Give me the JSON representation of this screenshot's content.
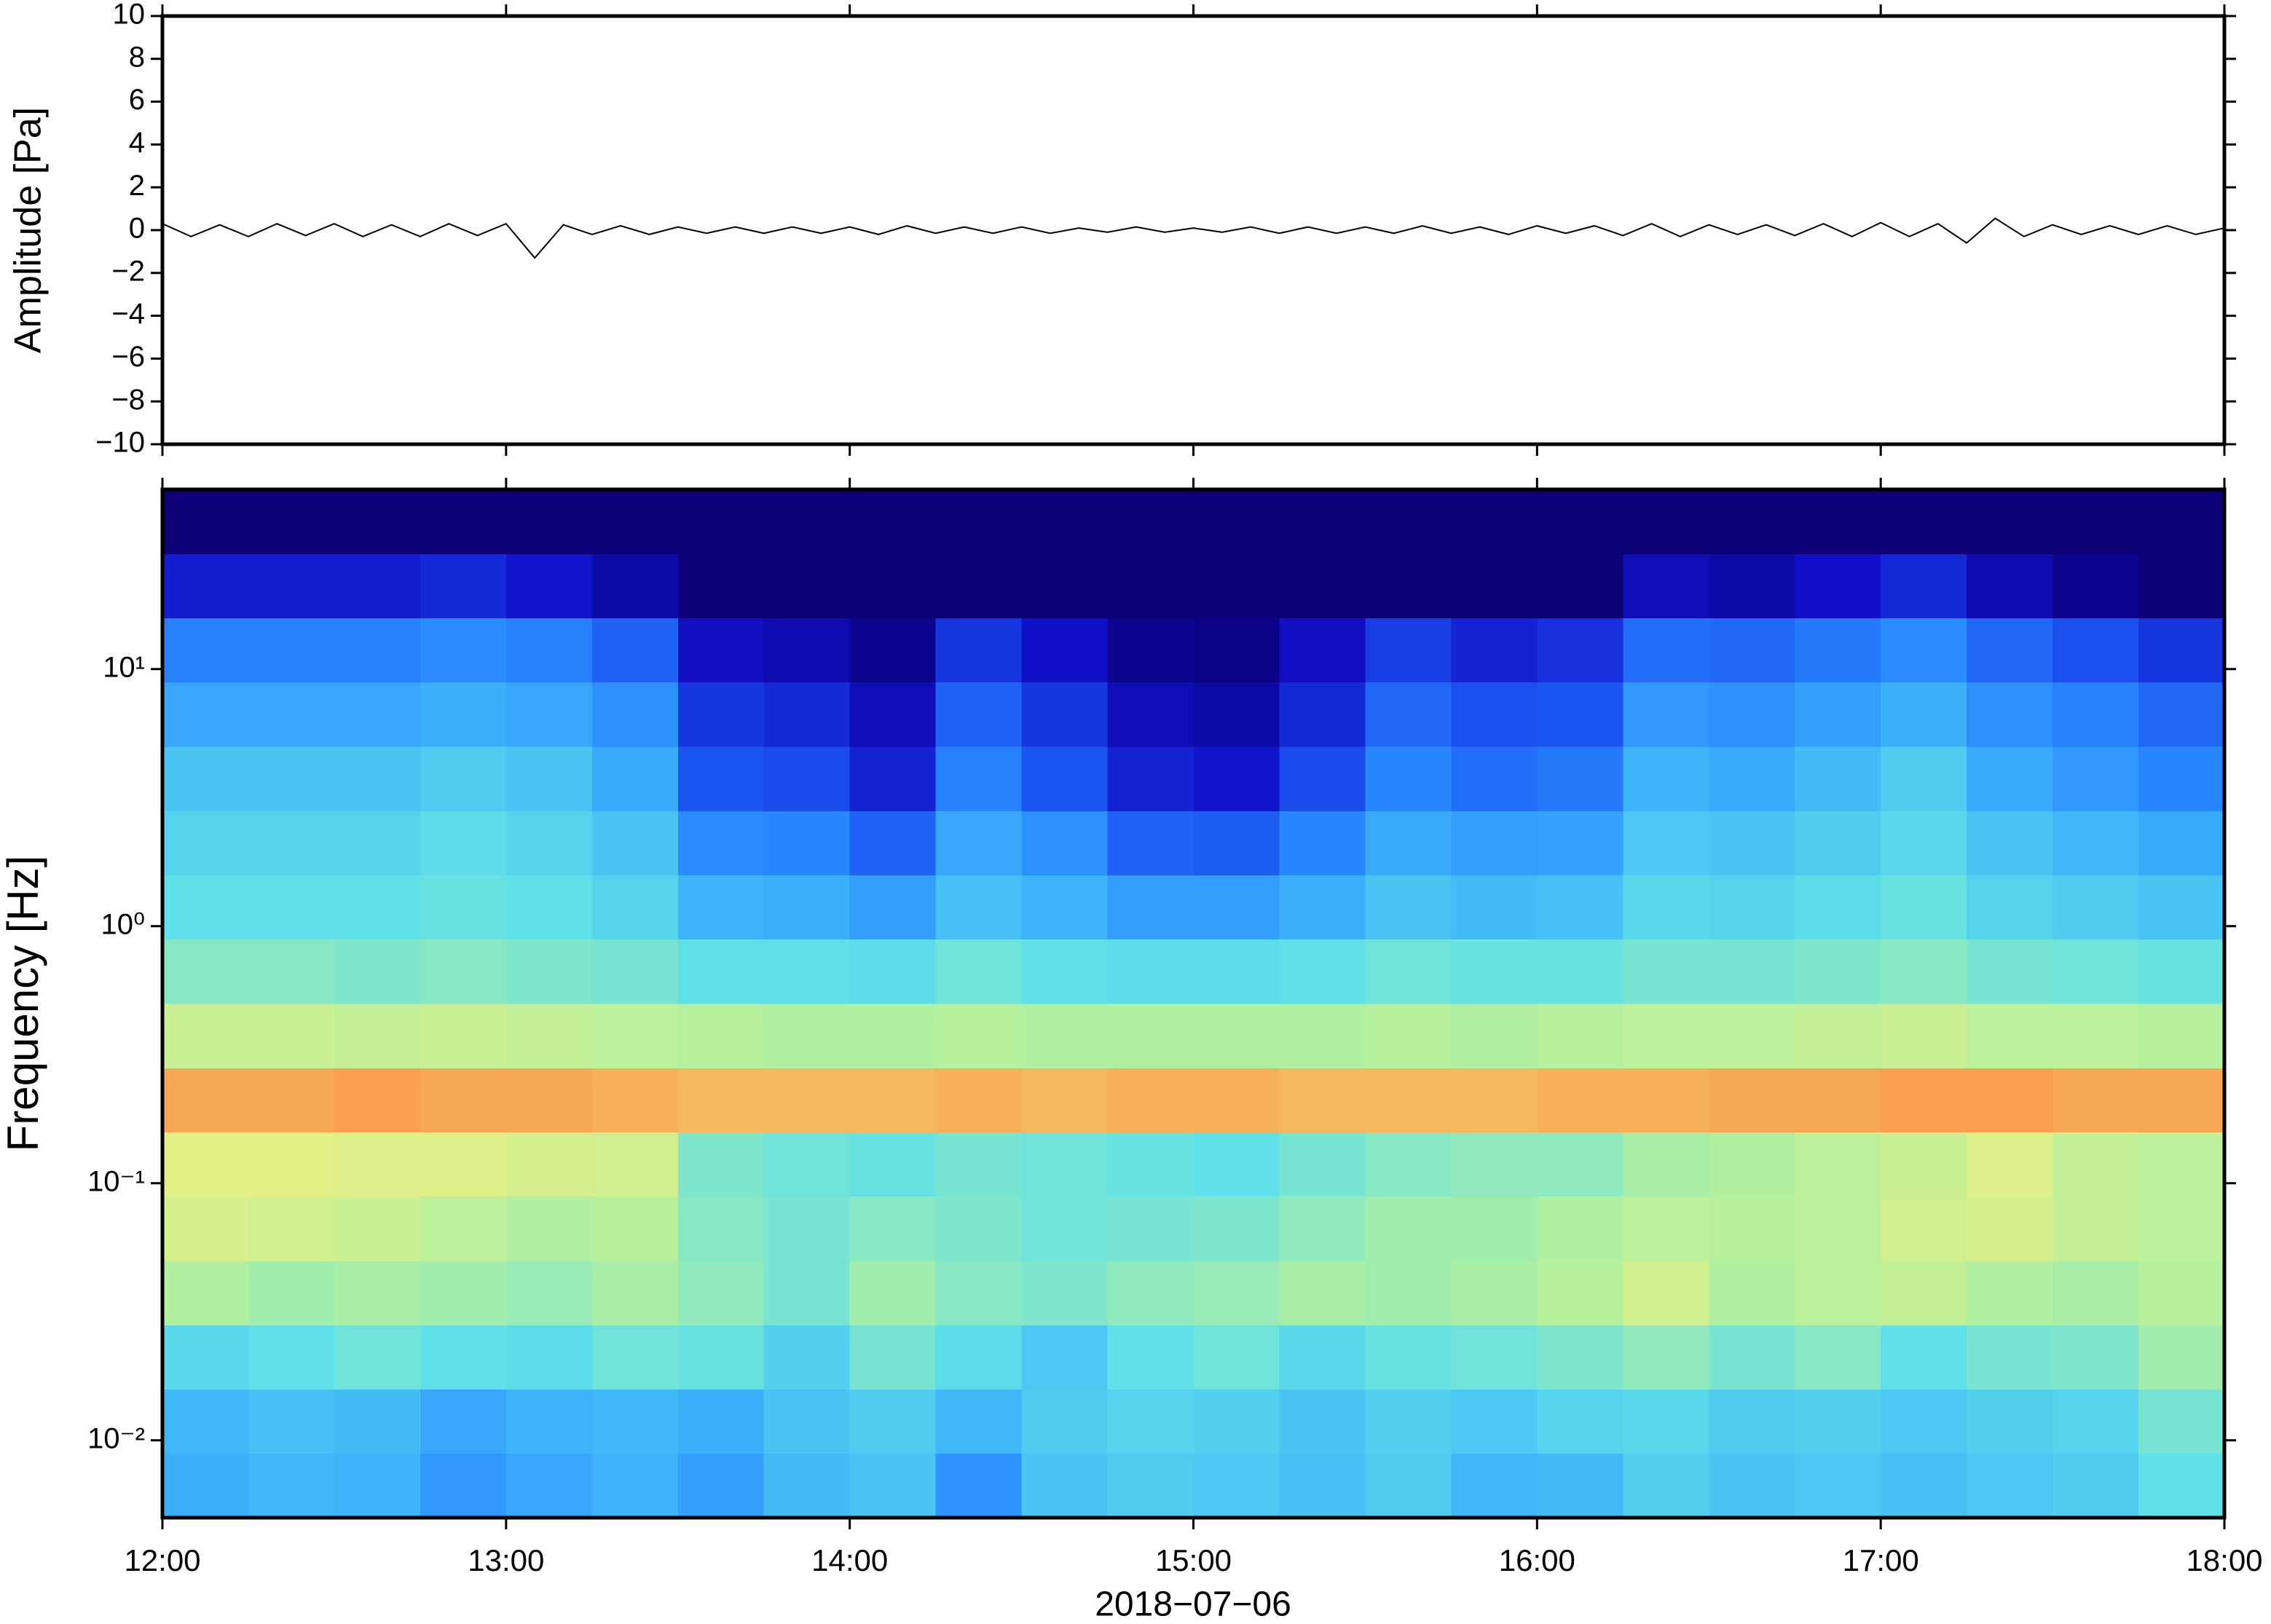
{
  "chart_data": [
    {
      "type": "line",
      "ylabel": "Amplitude [Pa]",
      "color": "#000000",
      "x": [
        "12:00",
        "12:05",
        "12:10",
        "12:15",
        "12:20",
        "12:25",
        "12:30",
        "12:35",
        "12:40",
        "12:45",
        "12:50",
        "12:55",
        "13:00",
        "13:05",
        "13:10",
        "13:15",
        "13:20",
        "13:25",
        "13:30",
        "13:35",
        "13:40",
        "13:45",
        "13:50",
        "13:55",
        "14:00",
        "14:05",
        "14:10",
        "14:15",
        "14:20",
        "14:25",
        "14:30",
        "14:35",
        "14:40",
        "14:45",
        "14:50",
        "14:55",
        "15:00",
        "15:05",
        "15:10",
        "15:15",
        "15:20",
        "15:25",
        "15:30",
        "15:35",
        "15:40",
        "15:45",
        "15:50",
        "15:55",
        "16:00",
        "16:05",
        "16:10",
        "16:15",
        "16:20",
        "16:25",
        "16:30",
        "16:35",
        "16:40",
        "16:45",
        "16:50",
        "16:55",
        "17:00",
        "17:05",
        "17:10",
        "17:15",
        "17:20",
        "17:25",
        "17:30",
        "17:35",
        "17:40",
        "17:45",
        "17:50",
        "17:55",
        "18:00"
      ],
      "values": [
        0.3,
        -0.3,
        0.25,
        -0.3,
        0.3,
        -0.25,
        0.3,
        -0.3,
        0.25,
        -0.3,
        0.3,
        -0.25,
        0.3,
        -1.3,
        0.25,
        -0.2,
        0.2,
        -0.2,
        0.15,
        -0.15,
        0.15,
        -0.15,
        0.15,
        -0.15,
        0.15,
        -0.2,
        0.2,
        -0.15,
        0.15,
        -0.15,
        0.15,
        -0.15,
        0.1,
        -0.1,
        0.15,
        -0.1,
        0.1,
        -0.1,
        0.15,
        -0.15,
        0.15,
        -0.15,
        0.15,
        -0.15,
        0.2,
        -0.15,
        0.15,
        -0.2,
        0.2,
        -0.15,
        0.2,
        -0.25,
        0.3,
        -0.3,
        0.25,
        -0.2,
        0.25,
        -0.25,
        0.3,
        -0.3,
        0.35,
        -0.3,
        0.3,
        -0.6,
        0.55,
        -0.3,
        0.25,
        -0.2,
        0.2,
        -0.2,
        0.2,
        -0.2,
        0.1
      ],
      "xlim": [
        "12:00",
        "18:00"
      ],
      "xticks": [
        "12:00",
        "13:00",
        "14:00",
        "15:00",
        "16:00",
        "17:00",
        "18:00"
      ],
      "ylim": [
        -10,
        10
      ],
      "yticks": [
        {
          "value": -10,
          "label": "−10"
        },
        {
          "value": -8,
          "label": "−8"
        },
        {
          "value": -6,
          "label": "−6"
        },
        {
          "value": -4,
          "label": "−4"
        },
        {
          "value": -2,
          "label": "−2"
        },
        0,
        2,
        4,
        6,
        8,
        10
      ]
    },
    {
      "type": "heatmap",
      "xlabel": "2018−07−06",
      "ylabel": "Frequency [Hz]",
      "ylog": true,
      "x_edges": [
        "12:00",
        "12:15",
        "12:30",
        "12:45",
        "13:00",
        "13:15",
        "13:30",
        "13:45",
        "14:00",
        "14:15",
        "14:30",
        "14:45",
        "15:00",
        "15:15",
        "15:30",
        "15:45",
        "16:00",
        "16:15",
        "16:30",
        "16:45",
        "17:00",
        "17:15",
        "17:30",
        "17:45",
        "18:00"
      ],
      "y_edges": [
        0.005,
        0.0089,
        0.0158,
        0.0281,
        0.05,
        0.089,
        0.158,
        0.281,
        0.5,
        0.89,
        1.58,
        2.81,
        5,
        8.9,
        15.8,
        28.1,
        50
      ],
      "zlim": [
        0,
        10
      ],
      "colormap": [
        "#0b0078",
        "#1010c8",
        "#1a50f0",
        "#2a8cff",
        "#40b8f8",
        "#60e0e8",
        "#b0f0a0",
        "#f0f080",
        "#f8a050",
        "#f06040",
        "#d02020"
      ],
      "z": [
        [
          3.8,
          4.0,
          3.9,
          3.3,
          3.6,
          3.9,
          3.4,
          4.1,
          4.3,
          3.2,
          4.3,
          4.5,
          4.4,
          4.2,
          4.5,
          4.0,
          4.1,
          4.6,
          4.3,
          4.4,
          4.2,
          4.4,
          4.5,
          5.0
        ],
        [
          4.0,
          4.2,
          4.1,
          3.6,
          3.9,
          4.0,
          3.8,
          4.3,
          4.5,
          4.0,
          4.5,
          4.7,
          4.6,
          4.3,
          4.6,
          4.4,
          4.7,
          4.8,
          4.5,
          4.6,
          4.4,
          4.6,
          4.7,
          5.3
        ],
        [
          4.8,
          5.0,
          5.2,
          5.0,
          4.9,
          5.2,
          5.1,
          4.6,
          5.3,
          4.9,
          4.4,
          5.0,
          5.2,
          4.8,
          5.1,
          5.2,
          5.4,
          5.6,
          5.3,
          5.5,
          5.0,
          5.3,
          5.4,
          5.8
        ],
        [
          6.0,
          5.8,
          5.9,
          5.8,
          5.7,
          5.9,
          5.6,
          5.3,
          5.8,
          5.5,
          5.4,
          5.6,
          5.7,
          5.9,
          5.8,
          5.9,
          6.1,
          6.5,
          6.0,
          6.2,
          6.3,
          6.0,
          5.9,
          6.1
        ],
        [
          6.6,
          6.5,
          6.4,
          6.2,
          6.0,
          6.1,
          5.5,
          5.3,
          5.5,
          5.4,
          5.2,
          5.3,
          5.4,
          5.6,
          5.8,
          5.8,
          6.0,
          6.2,
          6.1,
          6.2,
          6.5,
          6.6,
          6.3,
          6.2
        ],
        [
          6.8,
          6.8,
          6.7,
          6.7,
          6.6,
          6.5,
          5.4,
          5.2,
          5.1,
          5.3,
          5.2,
          5.1,
          5.0,
          5.3,
          5.5,
          5.6,
          5.6,
          5.9,
          6.0,
          6.2,
          6.4,
          6.7,
          6.3,
          6.2
        ],
        [
          7.9,
          7.9,
          8.0,
          7.9,
          7.9,
          7.8,
          7.7,
          7.7,
          7.7,
          7.8,
          7.7,
          7.8,
          7.8,
          7.7,
          7.7,
          7.7,
          7.8,
          7.8,
          7.9,
          7.9,
          8.0,
          8.0,
          7.9,
          7.9
        ],
        [
          6.4,
          6.4,
          6.3,
          6.4,
          6.3,
          6.2,
          6.1,
          6.0,
          6.0,
          6.1,
          6.0,
          6.0,
          6.0,
          6.0,
          6.1,
          6.0,
          6.1,
          6.2,
          6.2,
          6.3,
          6.4,
          6.2,
          6.2,
          6.1
        ],
        [
          5.5,
          5.5,
          5.4,
          5.5,
          5.4,
          5.3,
          5.0,
          5.0,
          4.9,
          5.2,
          5.0,
          4.9,
          4.9,
          5.0,
          5.2,
          5.1,
          5.1,
          5.3,
          5.3,
          5.4,
          5.5,
          5.3,
          5.2,
          5.1
        ],
        [
          5.0,
          5.0,
          5.0,
          5.1,
          5.0,
          4.7,
          3.9,
          3.8,
          3.4,
          4.2,
          3.9,
          3.4,
          3.4,
          3.8,
          4.3,
          4.1,
          4.2,
          4.8,
          4.7,
          4.9,
          5.1,
          4.7,
          4.5,
          4.3
        ],
        [
          4.7,
          4.7,
          4.7,
          4.9,
          4.7,
          4.3,
          3.0,
          2.9,
          2.3,
          3.6,
          3.1,
          2.3,
          2.2,
          2.9,
          3.7,
          3.4,
          3.5,
          4.4,
          4.3,
          4.5,
          4.8,
          4.3,
          4.0,
          3.7
        ],
        [
          4.3,
          4.3,
          4.3,
          4.5,
          4.3,
          3.7,
          2.1,
          1.9,
          1.3,
          2.8,
          2.1,
          1.3,
          1.1,
          1.9,
          2.9,
          2.5,
          2.7,
          3.9,
          3.7,
          4.1,
          4.5,
          3.7,
          3.3,
          2.9
        ],
        [
          3.6,
          3.6,
          3.6,
          3.8,
          3.6,
          3.1,
          1.6,
          1.4,
          0.8,
          2.3,
          1.6,
          0.8,
          0.6,
          1.4,
          2.4,
          2.0,
          2.1,
          3.3,
          3.1,
          3.4,
          3.8,
          3.1,
          2.8,
          2.4
        ],
        [
          2.8,
          2.8,
          2.8,
          3.0,
          2.8,
          2.3,
          0.9,
          0.7,
          0.3,
          1.6,
          1.0,
          0.3,
          0.2,
          0.9,
          1.7,
          1.3,
          1.5,
          2.5,
          2.4,
          2.7,
          3.0,
          2.4,
          2.0,
          1.6
        ],
        [
          1.2,
          1.2,
          1.2,
          1.4,
          1.1,
          0.6,
          0,
          0,
          0,
          0,
          0,
          0,
          0,
          0,
          0,
          0,
          0,
          0.8,
          0.6,
          1.0,
          1.4,
          0.7,
          0.3,
          0
        ],
        [
          0,
          0,
          0,
          0,
          0,
          0,
          0,
          0,
          0,
          0,
          0,
          0,
          0,
          0,
          0,
          0,
          0,
          0,
          0,
          0,
          0,
          0,
          0,
          0
        ]
      ],
      "xlim": [
        "12:00",
        "18:00"
      ],
      "xticks": [
        "12:00",
        "13:00",
        "14:00",
        "15:00",
        "16:00",
        "17:00",
        "18:00"
      ],
      "ylim": [
        0.005,
        50
      ],
      "yticks": [
        {
          "value": 0.01,
          "label": "10⁻²"
        },
        {
          "value": 0.1,
          "label": "10⁻¹"
        },
        {
          "value": 1,
          "label": "10⁰"
        },
        {
          "value": 10,
          "label": "10¹"
        }
      ]
    }
  ]
}
